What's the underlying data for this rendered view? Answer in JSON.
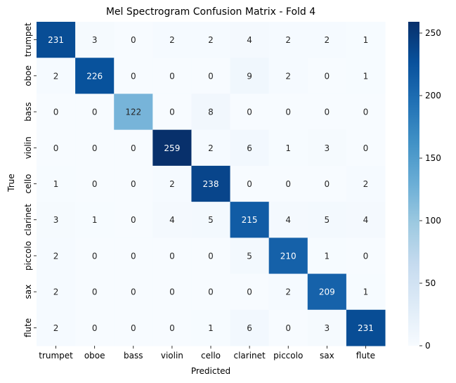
{
  "chart_data": {
    "type": "heatmap",
    "title": "Mel Spectrogram Confusion Matrix - Fold 4",
    "xlabel": "Predicted",
    "ylabel": "True",
    "x_categories": [
      "trumpet",
      "oboe",
      "bass",
      "violin",
      "cello",
      "clarinet",
      "piccolo",
      "sax",
      "flute"
    ],
    "y_categories": [
      "trumpet",
      "oboe",
      "bass",
      "violin",
      "cello",
      "clarinet",
      "piccolo",
      "sax",
      "flute"
    ],
    "values": [
      [
        231,
        3,
        0,
        2,
        2,
        4,
        2,
        2,
        1
      ],
      [
        2,
        226,
        0,
        0,
        0,
        9,
        2,
        0,
        1
      ],
      [
        0,
        0,
        122,
        0,
        8,
        0,
        0,
        0,
        0
      ],
      [
        0,
        0,
        0,
        259,
        2,
        6,
        1,
        3,
        0
      ],
      [
        1,
        0,
        0,
        2,
        238,
        0,
        0,
        0,
        2
      ],
      [
        3,
        1,
        0,
        4,
        5,
        215,
        4,
        5,
        4
      ],
      [
        2,
        0,
        0,
        0,
        0,
        5,
        210,
        1,
        0
      ],
      [
        2,
        0,
        0,
        0,
        0,
        0,
        2,
        209,
        1
      ],
      [
        2,
        0,
        0,
        0,
        1,
        6,
        0,
        3,
        231
      ]
    ],
    "colormap": "Blues",
    "vmin": 0,
    "vmax": 259,
    "colorbar_ticks": [
      0,
      50,
      100,
      150,
      200,
      250
    ],
    "colorbar_tick_labels": [
      "0",
      "50",
      "100",
      "150",
      "200",
      "250"
    ]
  }
}
